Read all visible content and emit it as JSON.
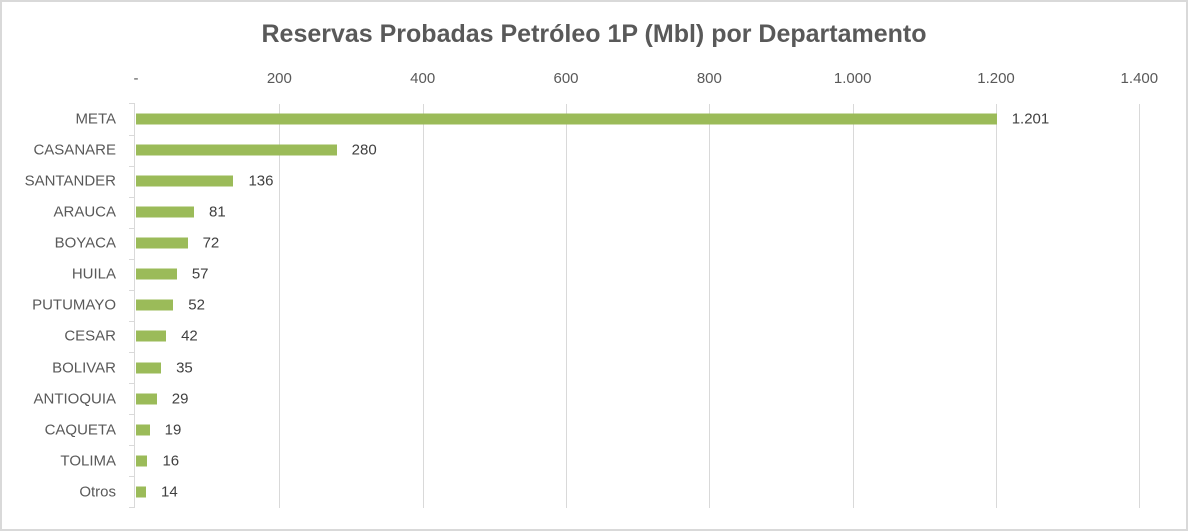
{
  "chart_data": {
    "type": "bar",
    "orientation": "horizontal",
    "title": "Reservas Probadas Petróleo 1P (Mbl) por Departamento",
    "xlabel": "",
    "ylabel": "",
    "xlim": [
      0,
      1400
    ],
    "x_ticks": [
      "-",
      "200",
      "400",
      "600",
      "800",
      "1.000",
      "1.200",
      "1.400"
    ],
    "x_tick_values": [
      0,
      200,
      400,
      600,
      800,
      1000,
      1200,
      1400
    ],
    "x_axis_position": "top",
    "grid": true,
    "legend": null,
    "bar_color": "#9bbb59",
    "categories": [
      "META",
      "CASANARE",
      "SANTANDER",
      "ARAUCA",
      "BOYACA",
      "HUILA",
      "PUTUMAYO",
      "CESAR",
      "BOLIVAR",
      "ANTIOQUIA",
      "CAQUETA",
      "TOLIMA",
      "Otros"
    ],
    "values": [
      1201,
      280,
      136,
      81,
      72,
      57,
      52,
      42,
      35,
      29,
      19,
      16,
      14
    ],
    "value_labels": [
      "1.201",
      "280",
      "136",
      "81",
      "72",
      "57",
      "52",
      "42",
      "35",
      "29",
      "19",
      "16",
      "14"
    ]
  }
}
